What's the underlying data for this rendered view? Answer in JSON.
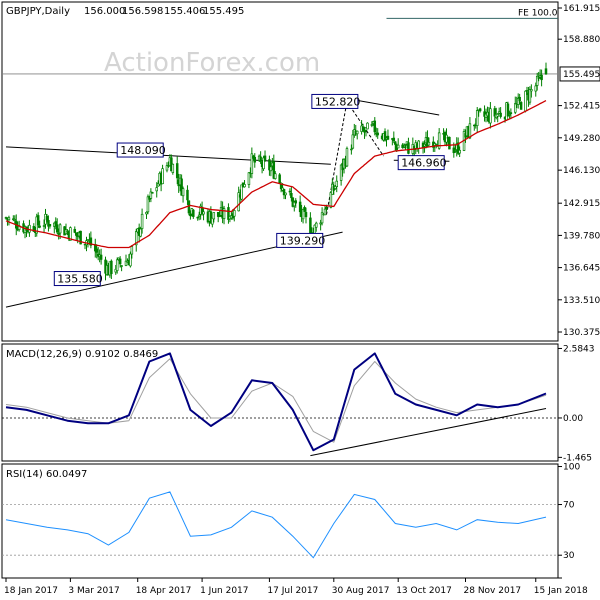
{
  "price_panel": {
    "header": {
      "symbol": "GBPJPY,Daily",
      "open": "156.000",
      "high": "156.598",
      "low": "155.406",
      "close": "155.495"
    },
    "watermark": "ActionForex.com",
    "current_price_label": "155.495",
    "fe_label": "FE 100.0",
    "y_ticks": [
      "161.915",
      "158.880",
      "155.495",
      "152.415",
      "149.280",
      "146.130",
      "142.915",
      "139.780",
      "136.645",
      "133.510",
      "130.375"
    ],
    "annotations": [
      "152.820",
      "148.090",
      "146.960",
      "139.290",
      "135.580"
    ]
  },
  "macd_panel": {
    "header": "MACD(12,26,9) 0.9102 0.8469",
    "y_ticks": [
      "2.5843",
      "0.00",
      "-1.465"
    ]
  },
  "rsi_panel": {
    "header": "RSI(14) 60.0497",
    "y_ticks": [
      "100",
      "70",
      "30",
      "0"
    ]
  },
  "x_axis": {
    "ticks": [
      "18 Jan 2017",
      "3 Mar 2017",
      "18 Apr 2017",
      "1 Jun 2017",
      "17 Jul 2017",
      "30 Aug 2017",
      "13 Oct 2017",
      "28 Nov 2017",
      "15 Jan 2018"
    ]
  },
  "colors": {
    "candle": "#008000",
    "ema": "#cc0000",
    "macd": "#000080",
    "signal": "#a0a0a0",
    "rsi": "#1e90ff",
    "current_price_line": "#808080",
    "fe_line": "#336666",
    "box_border": "#000080"
  },
  "chart_data": [
    {
      "type": "candlestick",
      "title": "GBPJPY,Daily",
      "series_ohlc_last": {
        "open": 156.0,
        "high": 156.598,
        "low": 155.406,
        "close": 155.495
      },
      "ylim": [
        129.5,
        162.5
      ],
      "x_range": [
        "2017-01-18",
        "2018-01-22"
      ],
      "x": [
        "2017-01-18",
        "2017-02-01",
        "2017-02-15",
        "2017-03-01",
        "2017-03-15",
        "2017-03-29",
        "2017-04-12",
        "2017-04-26",
        "2017-05-10",
        "2017-05-24",
        "2017-06-07",
        "2017-06-21",
        "2017-07-05",
        "2017-07-19",
        "2017-08-02",
        "2017-08-16",
        "2017-08-30",
        "2017-09-13",
        "2017-09-27",
        "2017-10-11",
        "2017-10-25",
        "2017-11-08",
        "2017-11-22",
        "2017-12-06",
        "2017-12-20",
        "2018-01-03",
        "2018-01-22"
      ],
      "close": [
        141.5,
        140.5,
        141.2,
        140.2,
        139.3,
        136.4,
        137.5,
        143.2,
        147.2,
        142.4,
        141.6,
        141.9,
        147.0,
        146.3,
        143.0,
        140.1,
        144.3,
        149.5,
        150.2,
        148.6,
        148.2,
        149.3,
        148.2,
        151.2,
        151.6,
        152.4,
        155.495
      ],
      "indicators": [
        {
          "name": "EMA",
          "values": [
            141.2,
            140.4,
            140.0,
            139.5,
            139.0,
            138.6,
            138.6,
            139.8,
            142.0,
            142.7,
            142.3,
            142.1,
            144.0,
            145.0,
            144.5,
            142.8,
            142.6,
            145.8,
            147.5,
            148.0,
            148.2,
            148.5,
            148.6,
            149.8,
            150.6,
            151.5,
            152.9
          ]
        }
      ],
      "annotations": [
        {
          "label": "152.820",
          "value": 152.82
        },
        {
          "label": "148.090",
          "value": 148.09
        },
        {
          "label": "146.960",
          "value": 146.96
        },
        {
          "label": "139.290",
          "value": 139.29
        },
        {
          "label": "135.580",
          "value": 135.58
        },
        {
          "label": "FE 100.0",
          "value": 160.9
        }
      ]
    },
    {
      "type": "line",
      "title": "MACD(12,26,9) 0.9102 0.8469",
      "ylim": [
        -1.6,
        2.75
      ],
      "x": [
        "2017-01-18",
        "2017-02-01",
        "2017-02-15",
        "2017-03-01",
        "2017-03-15",
        "2017-03-29",
        "2017-04-12",
        "2017-04-26",
        "2017-05-10",
        "2017-05-24",
        "2017-06-07",
        "2017-06-21",
        "2017-07-05",
        "2017-07-19",
        "2017-08-02",
        "2017-08-16",
        "2017-08-30",
        "2017-09-13",
        "2017-09-27",
        "2017-10-11",
        "2017-10-25",
        "2017-11-08",
        "2017-11-22",
        "2017-12-06",
        "2017-12-20",
        "2018-01-03",
        "2018-01-22"
      ],
      "series": [
        {
          "name": "MACD",
          "values": [
            0.4,
            0.3,
            0.1,
            -0.1,
            -0.2,
            -0.2,
            0.1,
            2.1,
            2.4,
            0.3,
            -0.3,
            0.2,
            1.4,
            1.3,
            0.3,
            -1.2,
            -0.8,
            1.8,
            2.4,
            0.9,
            0.5,
            0.3,
            0.1,
            0.5,
            0.4,
            0.5,
            0.9102
          ]
        },
        {
          "name": "Signal",
          "values": [
            0.5,
            0.4,
            0.2,
            0.0,
            -0.1,
            -0.2,
            -0.1,
            1.5,
            2.2,
            0.9,
            0.0,
            0.0,
            1.0,
            1.3,
            0.8,
            -0.5,
            -0.9,
            1.2,
            2.1,
            1.3,
            0.7,
            0.4,
            0.2,
            0.3,
            0.4,
            0.5,
            0.8469
          ]
        }
      ]
    },
    {
      "type": "line",
      "title": "RSI(14) 60.0497",
      "ylim": [
        0,
        100
      ],
      "x": [
        "2017-01-18",
        "2017-02-01",
        "2017-02-15",
        "2017-03-01",
        "2017-03-15",
        "2017-03-29",
        "2017-04-12",
        "2017-04-26",
        "2017-05-10",
        "2017-05-24",
        "2017-06-07",
        "2017-06-21",
        "2017-07-05",
        "2017-07-19",
        "2017-08-02",
        "2017-08-16",
        "2017-08-30",
        "2017-09-13",
        "2017-09-27",
        "2017-10-11",
        "2017-10-25",
        "2017-11-08",
        "2017-11-22",
        "2017-12-06",
        "2017-12-20",
        "2018-01-03",
        "2018-01-22"
      ],
      "series": [
        {
          "name": "RSI",
          "values": [
            58,
            55,
            52,
            50,
            47,
            38,
            48,
            75,
            80,
            45,
            46,
            52,
            65,
            60,
            45,
            28,
            55,
            78,
            74,
            55,
            52,
            55,
            50,
            58,
            56,
            55,
            60.0497
          ]
        }
      ],
      "levels": [
        30,
        70
      ]
    }
  ]
}
